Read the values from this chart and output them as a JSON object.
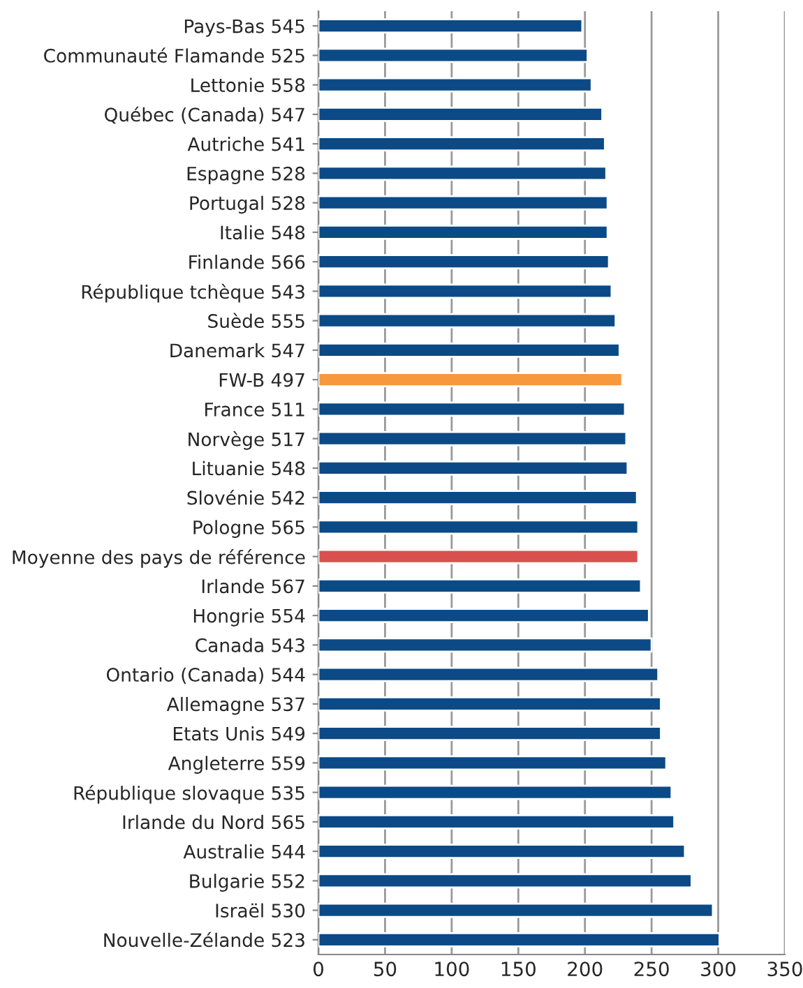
{
  "chart_data": {
    "type": "bar",
    "orientation": "horizontal",
    "categories": [
      "Pays-Bas 545",
      "Communauté Flamande 525",
      "Lettonie 558",
      "Québec (Canada) 547",
      "Autriche 541",
      "Espagne 528",
      "Portugal 528",
      "Italie 548",
      "Finlande 566",
      "République tchèque 543",
      "Suède 555",
      "Danemark 547",
      "FW-B 497",
      "France 511",
      "Norvège 517",
      "Lituanie 548",
      "Slovénie 542",
      "Pologne 565",
      "Moyenne des pays de référence",
      "Irlande 567",
      "Hongrie 554",
      "Canada 543",
      "Ontario (Canada) 544",
      "Allemagne 537",
      "Etats Unis 549",
      "Angleterre 559",
      "République slovaque 535",
      "Irlande du Nord 565",
      "Australie 544",
      "Bulgarie 552",
      "Israël 530",
      "Nouvelle-Zélande 523"
    ],
    "values": [
      198,
      202,
      205,
      213,
      215,
      216,
      217,
      217,
      218,
      220,
      223,
      226,
      228,
      230,
      231,
      232,
      239,
      240,
      240,
      242,
      248,
      250,
      255,
      257,
      257,
      261,
      265,
      267,
      275,
      280,
      296,
      301
    ],
    "colors": [
      "#0b4a86",
      "#0b4a86",
      "#0b4a86",
      "#0b4a86",
      "#0b4a86",
      "#0b4a86",
      "#0b4a86",
      "#0b4a86",
      "#0b4a86",
      "#0b4a86",
      "#0b4a86",
      "#0b4a86",
      "#f7983d",
      "#0b4a86",
      "#0b4a86",
      "#0b4a86",
      "#0b4a86",
      "#0b4a86",
      "#d9514e",
      "#0b4a86",
      "#0b4a86",
      "#0b4a86",
      "#0b4a86",
      "#0b4a86",
      "#0b4a86",
      "#0b4a86",
      "#0b4a86",
      "#0b4a86",
      "#0b4a86",
      "#0b4a86",
      "#0b4a86",
      "#0b4a86"
    ],
    "xlim": [
      0,
      350
    ],
    "xticks": [
      0,
      50,
      100,
      150,
      200,
      250,
      300,
      350
    ],
    "grid": "x"
  }
}
